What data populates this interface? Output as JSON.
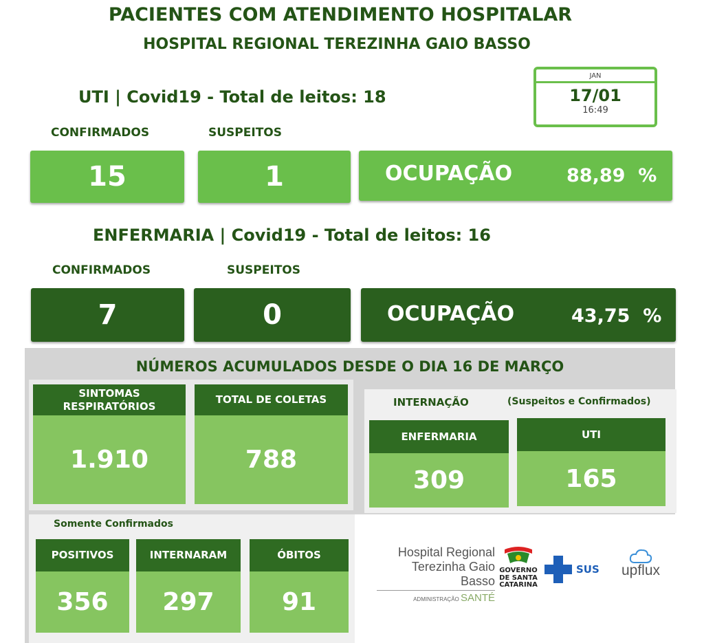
{
  "header": {
    "title": "PACIENTES COM ATENDIMENTO HOSPITALAR",
    "subtitle": "HOSPITAL REGIONAL TEREZINHA GAIO BASSO"
  },
  "date": {
    "month": "JAN",
    "day": "17/01",
    "time": "16:49"
  },
  "uti": {
    "heading": "UTI | Covid19 - Total de leitos: 18",
    "confirmed_label": "CONFIRMADOS",
    "suspected_label": "SUSPEITOS",
    "confirmed": "15",
    "suspected": "1",
    "occupancy_label": "OCUPAÇÃO",
    "occupancy_value": "88,89  %"
  },
  "ward": {
    "heading": "ENFERMARIA | Covid19 - Total de leitos: 16",
    "confirmed_label": "CONFIRMADOS",
    "suspected_label": "SUSPEITOS",
    "confirmed": "7",
    "suspected": "0",
    "occupancy_label": "OCUPAÇÃO",
    "occupancy_value": "43,75  %"
  },
  "accumulated": {
    "heading": "NÚMEROS ACUMULADOS DESDE O DIA 16 DE MARÇO",
    "respiratory_label": "SINTOMAS RESPIRATÓRIOS",
    "respiratory_value": "1.910",
    "collections_label": "TOTAL DE COLETAS",
    "collections_value": "788",
    "hospitalization_label": "INTERNAÇÃO",
    "hospitalization_note": "(Suspeitos e Confirmados)",
    "ward_label": "ENFERMARIA",
    "ward_value": "309",
    "uti_label": "UTI",
    "uti_value": "165",
    "confirmed_only_label": "Somente Confirmados",
    "positive_label": "POSITIVOS",
    "positive_value": "356",
    "hospitalized_label": "INTERNARAM",
    "hospitalized_value": "297",
    "deaths_label": "ÓBITOS",
    "deaths_value": "91"
  },
  "logos": {
    "hospital_line1": "Hospital Regional",
    "hospital_line2": "Terezinha Gaio Basso",
    "admin_label": "ADMINISTRAÇÃO",
    "admin_brand": "SANTÉ",
    "gov_line1": "GOVERNO",
    "gov_line2": "DE SANTA",
    "gov_line3": "CATARINA",
    "sus": "SUS",
    "upflux": "upflux"
  },
  "colors": {
    "light_green": "#6abf4b",
    "dark_green": "#2a5f1e",
    "card_green": "#86c560",
    "text_green": "#245416"
  }
}
